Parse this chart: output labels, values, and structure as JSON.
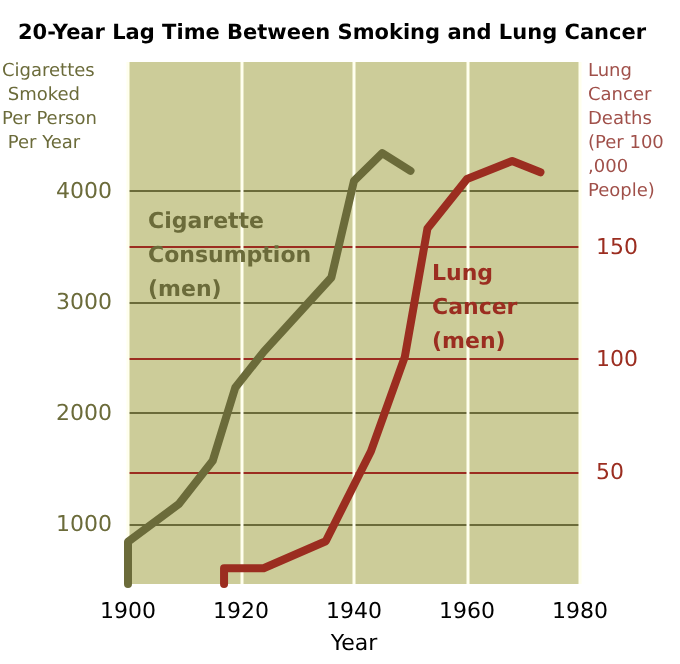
{
  "chart_data": {
    "type": "line",
    "title": "20-Year Lag Time Between Smoking and Lung Cancer",
    "xlabel": "Year",
    "ylabel": "Cigarettes Smoked Per Person Per Year",
    "y2label": "Lung Cancer Deaths (Per 100,000 People)",
    "xlim": [
      1900,
      1980
    ],
    "xticks": [
      1900,
      1920,
      1940,
      1960,
      1980
    ],
    "ylim": [
      460,
      5160
    ],
    "yticks": [
      1000,
      2000,
      3000,
      4000
    ],
    "y2lim": [
      0,
      232
    ],
    "y2ticks": [
      50,
      100,
      150
    ],
    "grid": true,
    "legend": false,
    "marker": "none",
    "line_style": "solid",
    "series": [
      {
        "name": "Cigarette Consumption (men)",
        "color": "#6b6b3a",
        "x": [
          1900,
          1900,
          1909,
          1915,
          1919,
          1924,
          1936,
          1940,
          1945,
          1950
        ],
        "values": [
          460,
          840,
          1180,
          1570,
          2230,
          2550,
          3220,
          4090,
          4340,
          4180
        ]
      },
      {
        "name": "Lung Cancer (men)",
        "color": "#9b2d20",
        "axis": "y2",
        "x": [
          1917,
          1917,
          1924,
          1935,
          1943,
          1949,
          1953,
          1960,
          1968,
          1973
        ],
        "values": [
          0,
          7,
          7,
          19,
          59,
          101,
          158,
          180,
          188,
          183
        ]
      }
    ]
  }
}
